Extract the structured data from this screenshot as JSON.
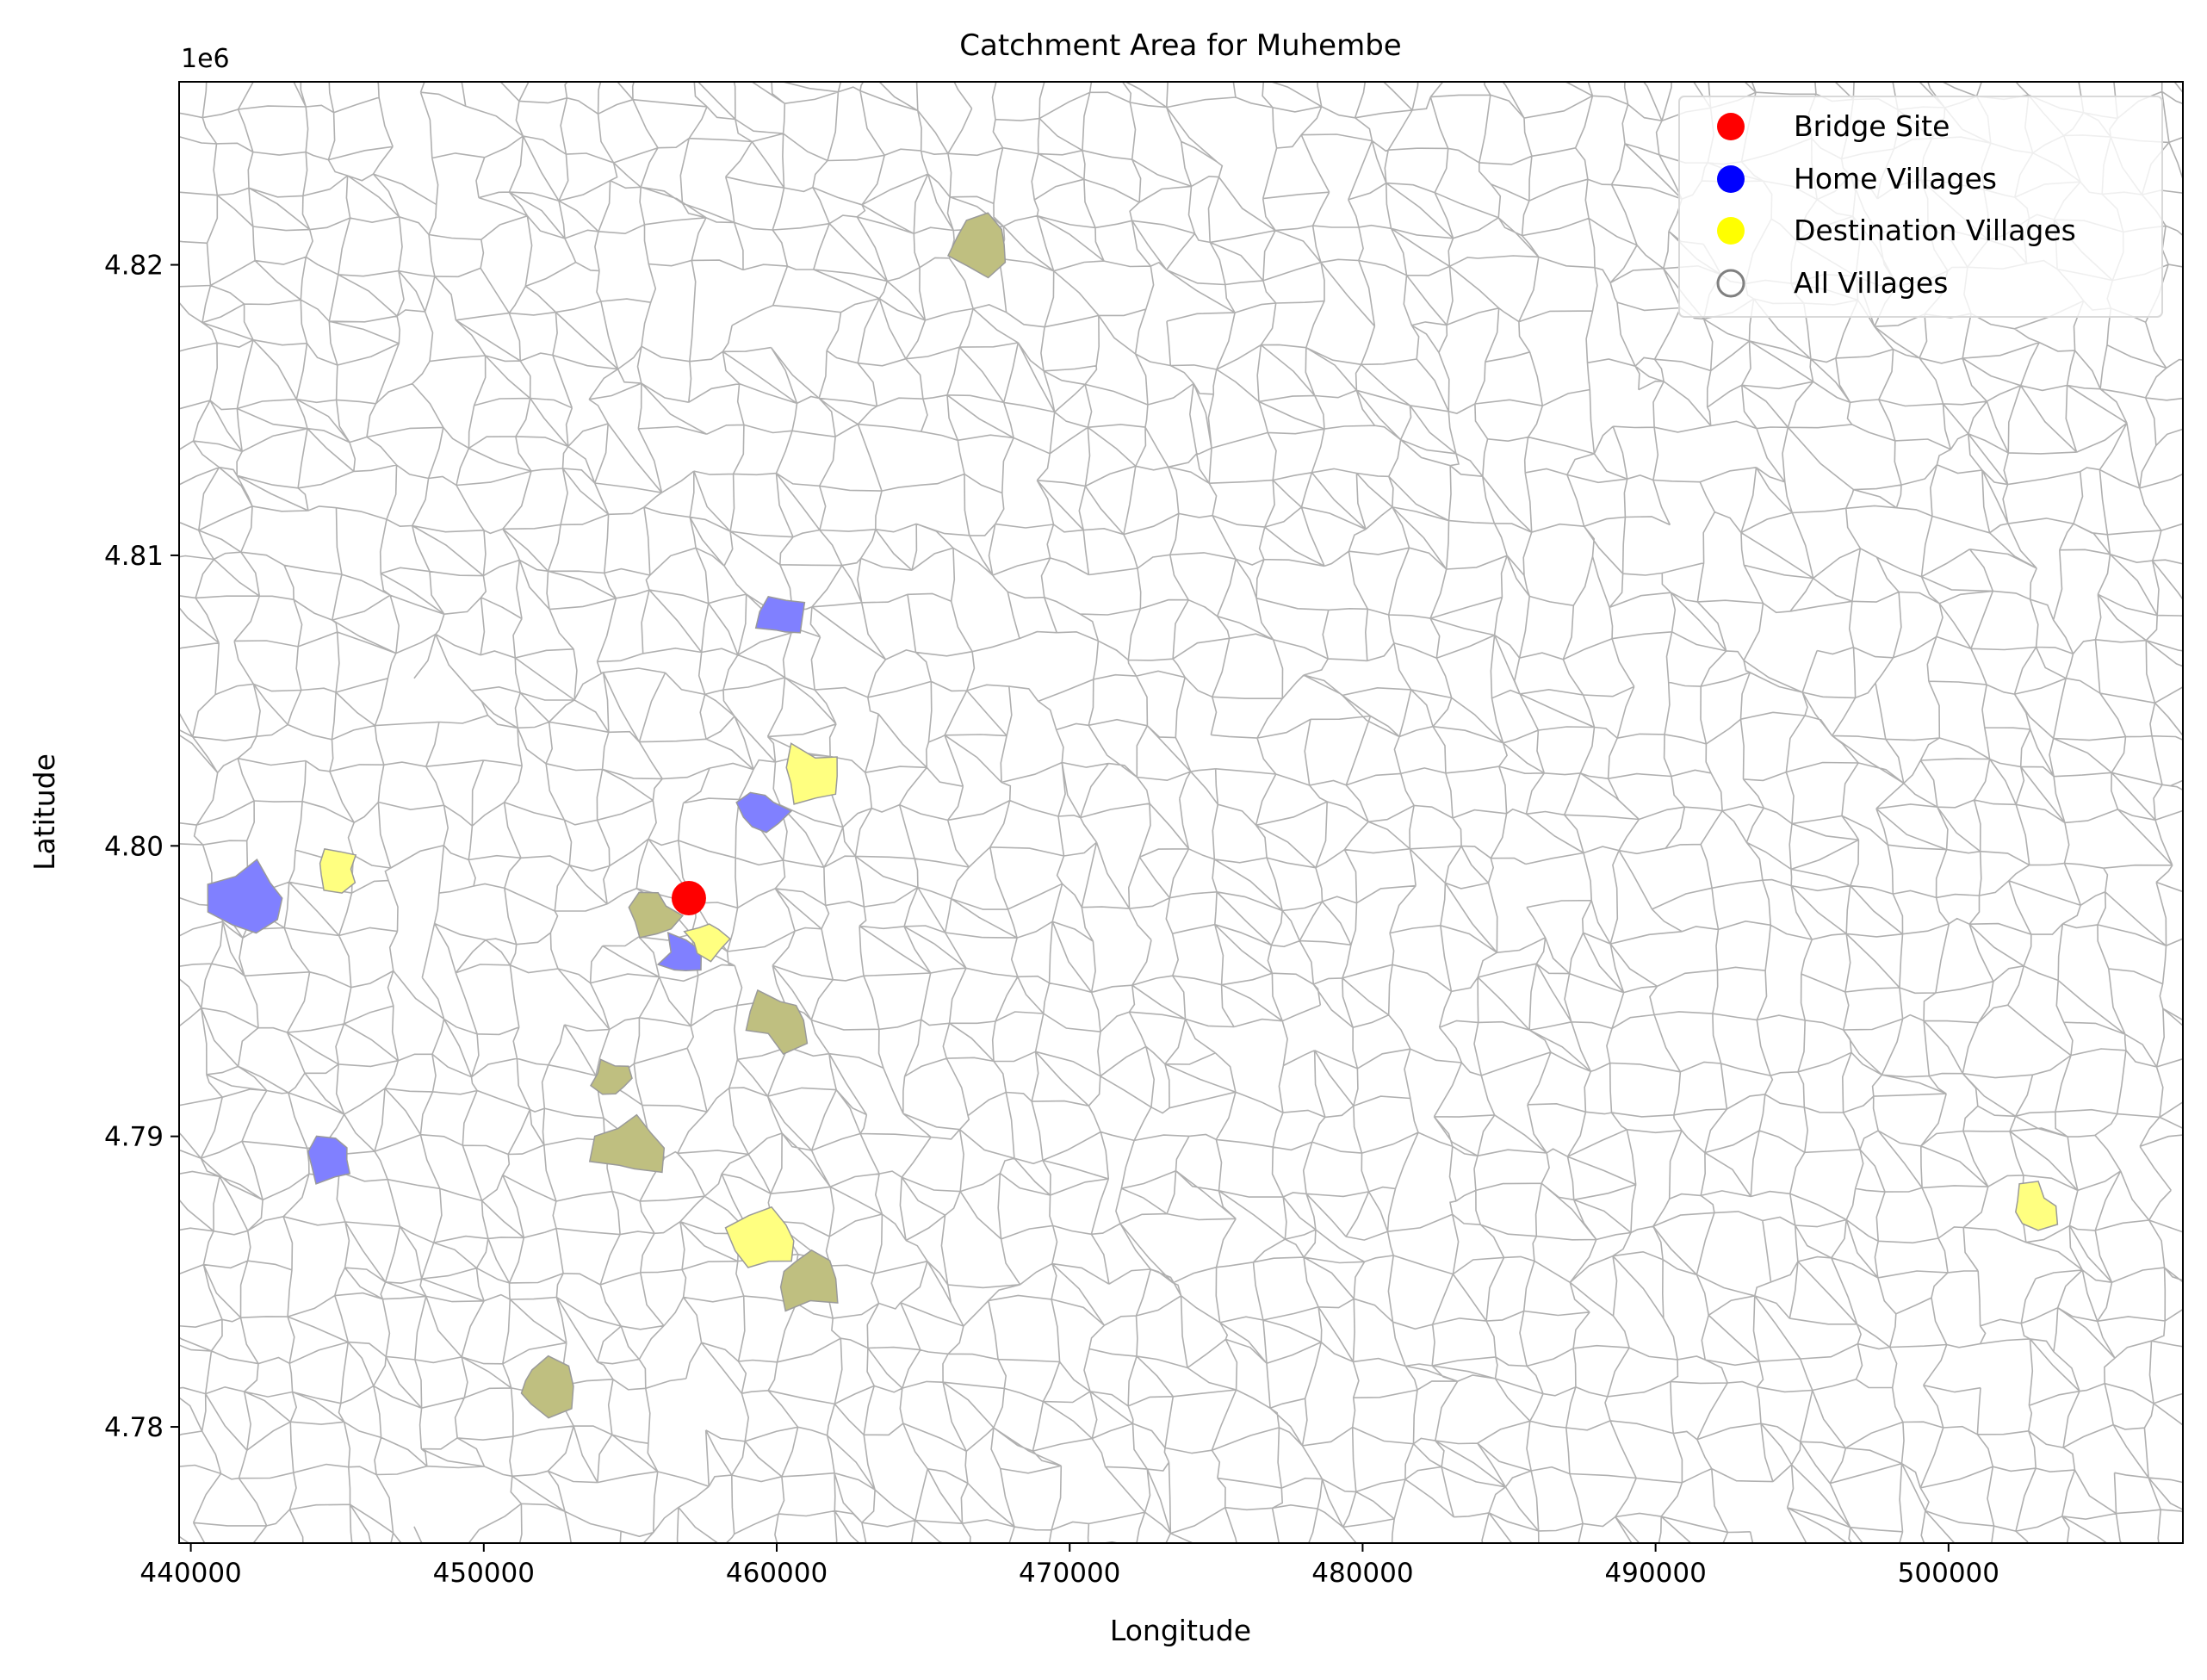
{
  "chart_data": {
    "type": "map",
    "title": "Catchment Area for Muhembe",
    "xlabel": "Longitude",
    "ylabel": "Latitude",
    "y_offset_label": "1e6",
    "xlim": [
      439600,
      508000
    ],
    "ylim": [
      4776000,
      4826300
    ],
    "x_ticks": [
      440000,
      450000,
      460000,
      470000,
      480000,
      490000,
      500000
    ],
    "x_tick_labels": [
      "440000",
      "450000",
      "460000",
      "470000",
      "480000",
      "490000",
      "500000"
    ],
    "y_ticks": [
      4780000,
      4790000,
      4800000,
      4810000,
      4820000
    ],
    "y_tick_labels": [
      "4.78",
      "4.79",
      "4.80",
      "4.81",
      "4.82"
    ],
    "legend": {
      "position": "top-right",
      "entries": [
        {
          "label": "Bridge Site",
          "color": "#ff0000",
          "marker": "filled-circle"
        },
        {
          "label": "Home Villages",
          "color": "#0000ff",
          "marker": "filled-circle"
        },
        {
          "label": "Destination Villages",
          "color": "#ffff00",
          "marker": "filled-circle"
        },
        {
          "label": "All Villages",
          "color": "#808080",
          "marker": "hollow-circle"
        }
      ]
    },
    "colors": {
      "village_boundary": "#b0b0b0",
      "home_fill": "#8080ff",
      "destination_fill": "#ffff80",
      "overlap_fill": "#bfbf80",
      "bridge": "#ff0000"
    },
    "bridge_site": {
      "x": 457000,
      "y": 4798200
    },
    "home_villages": [
      {
        "x": 460200,
        "y": 4807800
      },
      {
        "x": 459500,
        "y": 4801200
      },
      {
        "x": 442000,
        "y": 4798200
      },
      {
        "x": 456800,
        "y": 4796200
      },
      {
        "x": 444800,
        "y": 4789200
      }
    ],
    "destination_villages": [
      {
        "x": 461200,
        "y": 4802400
      },
      {
        "x": 445000,
        "y": 4799200
      },
      {
        "x": 457600,
        "y": 4796800
      },
      {
        "x": 459600,
        "y": 4786400
      },
      {
        "x": 502900,
        "y": 4787600
      }
    ],
    "overlap_villages": [
      {
        "x": 467000,
        "y": 4820700
      },
      {
        "x": 455800,
        "y": 4797600
      },
      {
        "x": 460000,
        "y": 4794000
      },
      {
        "x": 454400,
        "y": 4792000
      },
      {
        "x": 455000,
        "y": 4789600
      },
      {
        "x": 461000,
        "y": 4785100
      },
      {
        "x": 452000,
        "y": 4781400
      }
    ],
    "grid": false
  }
}
